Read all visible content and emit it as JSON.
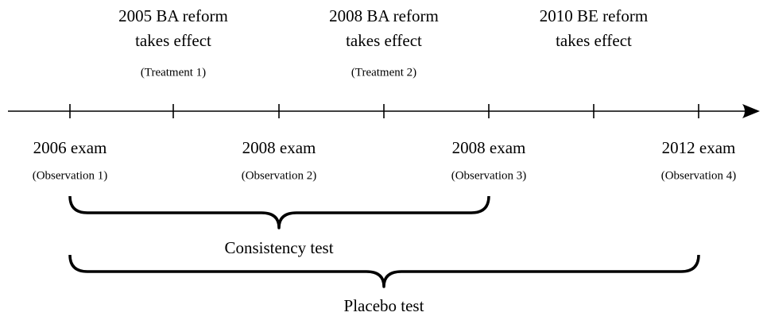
{
  "events": [
    {
      "line1": "2005 BA reform",
      "line2": "takes effect",
      "note": "(Treatment 1)"
    },
    {
      "line1": "2008 BA reform",
      "line2": "takes effect",
      "note": "(Treatment 2)"
    },
    {
      "line1": "2010 BE reform",
      "line2": "takes effect"
    }
  ],
  "observations": [
    {
      "label": "2006 exam",
      "note": "(Observation 1)"
    },
    {
      "label": "2008 exam",
      "note": "(Observation 2)"
    },
    {
      "label": "2008 exam",
      "note": "(Observation 3)"
    },
    {
      "label": "2012 exam",
      "note": "(Observation 4)"
    }
  ],
  "brackets": [
    {
      "label": "Consistency test"
    },
    {
      "label": "Placebo test"
    }
  ]
}
